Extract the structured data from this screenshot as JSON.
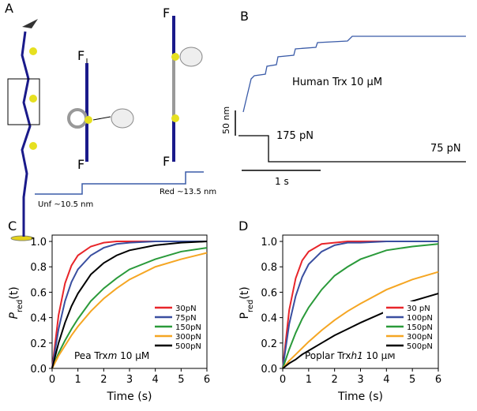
{
  "panels": {
    "a": {
      "label": "A",
      "forces": [
        "F",
        "F",
        "F",
        "F"
      ],
      "unfold": "Unf ~10.5 nm",
      "reduce": "Red ~13.5 nm"
    },
    "b": {
      "label": "B",
      "enzyme": "Human Trx 10 μM",
      "scale_y": "50 nm",
      "force_high": "175 pN",
      "force_low": "75 pN",
      "scale_x": "1 s"
    }
  },
  "chart_data": [
    {
      "type": "line",
      "label": "C",
      "xlabel": "Time (s)",
      "ylabel": [
        "P",
        "red",
        "(t)"
      ],
      "annotation": [
        "Pea Trx",
        "m",
        " 10 μM"
      ],
      "xlim": [
        0,
        6
      ],
      "xticks": [
        0,
        1,
        2,
        3,
        4,
        5,
        6
      ],
      "ylim": [
        0,
        1.05
      ],
      "yticks": [
        {
          "value": 0,
          "label": "0.0"
        },
        {
          "value": 0.2,
          "label": "0.2"
        },
        {
          "value": 0.4,
          "label": "0.4"
        },
        {
          "value": 0.6,
          "label": "0.6"
        },
        {
          "value": 0.8,
          "label": "0.8"
        },
        {
          "value": 1,
          "label": "1.0"
        }
      ],
      "x": [
        0,
        0.25,
        0.5,
        0.75,
        1,
        1.5,
        2,
        2.5,
        3,
        4,
        5,
        6
      ],
      "series": [
        {
          "name": "30pN",
          "color": "#e8252a",
          "values": [
            0,
            0.42,
            0.67,
            0.81,
            0.89,
            0.96,
            0.99,
            1.0,
            1.0,
            1.0,
            1.0,
            1.0
          ]
        },
        {
          "name": "75pN",
          "color": "#3a4fa0",
          "values": [
            0,
            0.31,
            0.53,
            0.68,
            0.78,
            0.89,
            0.95,
            0.98,
            0.99,
            1.0,
            1.0,
            1.0
          ]
        },
        {
          "name": "150pN",
          "color": "#2a9a3a",
          "values": [
            0,
            0.12,
            0.22,
            0.31,
            0.39,
            0.53,
            0.63,
            0.71,
            0.78,
            0.86,
            0.92,
            0.95
          ]
        },
        {
          "name": "300pN",
          "color": "#f5a623",
          "values": [
            0,
            0.1,
            0.18,
            0.26,
            0.33,
            0.45,
            0.55,
            0.63,
            0.7,
            0.8,
            0.86,
            0.91
          ]
        },
        {
          "name": "500pN",
          "color": "#000000",
          "values": [
            0,
            0.2,
            0.36,
            0.49,
            0.59,
            0.74,
            0.83,
            0.89,
            0.93,
            0.97,
            0.99,
            1.0
          ]
        }
      ]
    },
    {
      "type": "line",
      "label": "D",
      "xlabel": "Time (s)",
      "ylabel": [
        "P",
        "red",
        "(t)"
      ],
      "annotation": [
        "Poplar Trx",
        "h1",
        " 10 μM"
      ],
      "xlim": [
        0,
        6
      ],
      "xticks": [
        0,
        1,
        2,
        3,
        4,
        5,
        6
      ],
      "ylim": [
        0,
        1.05
      ],
      "yticks": [
        {
          "value": 0,
          "label": "0.0"
        },
        {
          "value": 0.2,
          "label": "0.2"
        },
        {
          "value": 0.4,
          "label": "0.4"
        },
        {
          "value": 0.6,
          "label": "0.6"
        },
        {
          "value": 0.8,
          "label": "0.8"
        },
        {
          "value": 1,
          "label": "1.0"
        }
      ],
      "x": [
        0,
        0.25,
        0.5,
        0.75,
        1,
        1.5,
        2,
        2.5,
        3,
        4,
        5,
        6
      ],
      "series": [
        {
          "name": "30 pN",
          "color": "#e8252a",
          "values": [
            0,
            0.46,
            0.71,
            0.85,
            0.92,
            0.98,
            0.99,
            1.0,
            1.0,
            1.0,
            1.0,
            1.0
          ]
        },
        {
          "name": "100pN",
          "color": "#3a4fa0",
          "values": [
            0,
            0.35,
            0.57,
            0.72,
            0.82,
            0.92,
            0.97,
            0.99,
            0.99,
            1.0,
            1.0,
            1.0
          ]
        },
        {
          "name": "150pN",
          "color": "#2a9a3a",
          "values": [
            0,
            0.15,
            0.28,
            0.39,
            0.48,
            0.62,
            0.73,
            0.8,
            0.86,
            0.93,
            0.96,
            0.98
          ]
        },
        {
          "name": "300pN",
          "color": "#f5a623",
          "values": [
            0,
            0.06,
            0.11,
            0.16,
            0.21,
            0.3,
            0.38,
            0.45,
            0.51,
            0.62,
            0.7,
            0.76
          ]
        },
        {
          "name": "500pN",
          "color": "#000000",
          "values": [
            0,
            0.04,
            0.07,
            0.11,
            0.14,
            0.2,
            0.26,
            0.31,
            0.36,
            0.45,
            0.53,
            0.59
          ]
        }
      ]
    }
  ]
}
